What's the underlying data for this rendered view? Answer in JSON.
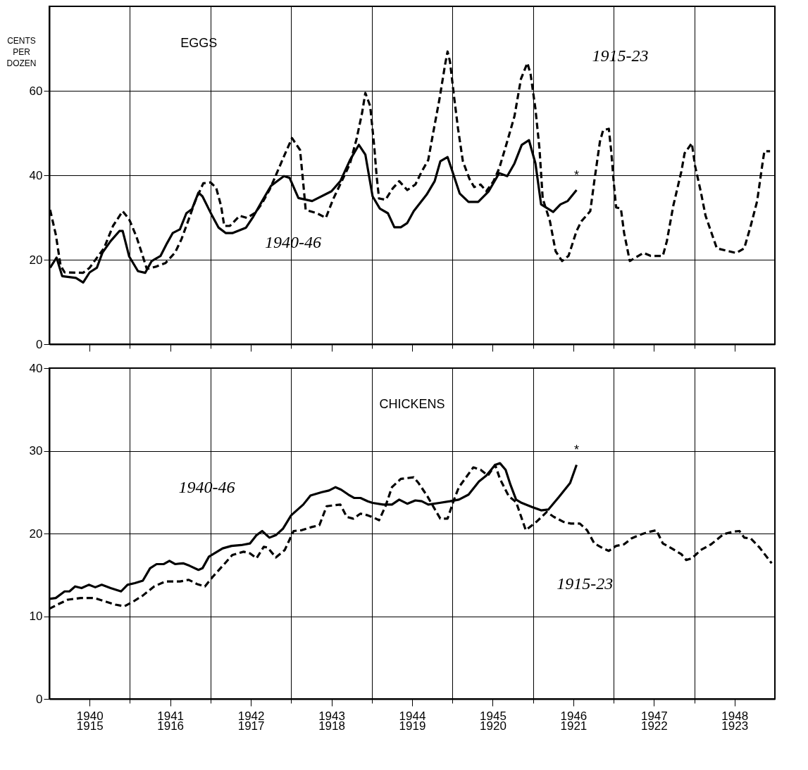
{
  "chart_data": [
    {
      "type": "line",
      "title": "EGGS",
      "ylabel": "CENTS PER DOZEN",
      "xlim": [
        1940,
        1949
      ],
      "ylim": [
        0,
        80
      ],
      "yticks": [
        0,
        20,
        40,
        60
      ],
      "grid": true,
      "tick_labels": "y",
      "xticks": [
        {
          "value": 1941,
          "label": null
        },
        {
          "value": 1942,
          "label": null
        },
        {
          "value": 1943,
          "label": null
        },
        {
          "value": 1944,
          "label": null
        },
        {
          "value": 1945,
          "label": null
        },
        {
          "value": 1946,
          "label": null
        },
        {
          "value": 1947,
          "label": null
        },
        {
          "value": 1948,
          "label": null
        },
        {
          "value": 1940.5,
          "label": null
        },
        {
          "value": 1941.5,
          "label": null
        },
        {
          "value": 1942.5,
          "label": null
        },
        {
          "value": 1943.5,
          "label": null
        },
        {
          "value": 1944.5,
          "label": null
        },
        {
          "value": 1945.5,
          "label": null
        },
        {
          "value": 1946.5,
          "label": null
        },
        {
          "value": 1947.5,
          "label": null
        },
        {
          "value": 1948.5,
          "label": null
        }
      ],
      "series": [
        {
          "color": "#000000",
          "line_style": "solid",
          "x": [
            1940.01,
            1940.09,
            1940.16,
            1940.33,
            1940.42,
            1940.5,
            1940.59,
            1940.66,
            1940.76,
            1940.87,
            1940.91,
            1940.99,
            1941.1,
            1941.19,
            1941.27,
            1941.38,
            1941.46,
            1941.53,
            1941.62,
            1941.7,
            1941.77,
            1941.85,
            1941.9,
            1942.02,
            1942.1,
            1942.19,
            1942.27,
            1942.44,
            1942.53,
            1942.64,
            1942.75,
            1942.91,
            1942.98,
            1943.09,
            1943.26,
            1943.5,
            1943.61,
            1943.73,
            1943.84,
            1943.92,
            1944.01,
            1944.1,
            1944.2,
            1944.28,
            1944.36,
            1944.44,
            1944.52,
            1944.68,
            1944.78,
            1944.85,
            1944.94,
            1945.0,
            1945.09,
            1945.2,
            1945.32,
            1945.45,
            1945.58,
            1945.68,
            1945.77,
            1945.86,
            1945.95,
            1946.03,
            1946.1,
            1946.25,
            1946.34,
            1946.43,
            1946.54
          ],
          "values": [
            18.1,
            20.5,
            16.1,
            15.7,
            14.6,
            17.0,
            18.1,
            21.7,
            24.4,
            26.8,
            26.8,
            20.8,
            17.3,
            16.9,
            19.7,
            20.9,
            23.9,
            26.3,
            27.2,
            31.0,
            32.0,
            35.9,
            35.0,
            30.4,
            27.6,
            26.3,
            26.3,
            27.6,
            30.2,
            33.9,
            37.5,
            39.8,
            39.4,
            34.6,
            33.9,
            36.2,
            38.6,
            43.6,
            47.2,
            44.9,
            35.0,
            32.1,
            31.0,
            27.7,
            27.7,
            28.7,
            31.5,
            35.4,
            38.6,
            43.3,
            44.3,
            40.9,
            35.7,
            33.7,
            33.7,
            36.2,
            40.5,
            39.8,
            42.8,
            47.2,
            48.3,
            42.8,
            33.1,
            31.3,
            33.1,
            33.9,
            36.5
          ]
        },
        {
          "color": "#000000",
          "line_style": "dashed",
          "x": [
            1940.01,
            1940.08,
            1940.14,
            1940.19,
            1940.42,
            1940.5,
            1940.68,
            1940.79,
            1940.91,
            1940.99,
            1941.08,
            1941.16,
            1941.21,
            1941.33,
            1941.44,
            1941.56,
            1941.64,
            1941.73,
            1941.81,
            1941.91,
            1942.0,
            1942.07,
            1942.13,
            1942.17,
            1942.24,
            1942.36,
            1942.45,
            1942.56,
            1942.64,
            1942.73,
            1942.79,
            1942.92,
            1943.01,
            1943.11,
            1943.15,
            1943.18,
            1943.32,
            1943.43,
            1943.52,
            1943.64,
            1943.73,
            1943.81,
            1943.88,
            1943.92,
            1943.98,
            1944.03,
            1944.06,
            1944.09,
            1944.17,
            1944.26,
            1944.34,
            1944.44,
            1944.54,
            1944.62,
            1944.7,
            1944.76,
            1944.84,
            1944.91,
            1944.94,
            1944.97,
            1945.02,
            1945.07,
            1945.13,
            1945.21,
            1945.27,
            1945.35,
            1945.42,
            1945.51,
            1945.58,
            1945.68,
            1945.77,
            1945.85,
            1945.93,
            1945.97,
            1946.03,
            1946.08,
            1946.12,
            1946.21,
            1946.28,
            1946.36,
            1946.44,
            1946.54,
            1946.6,
            1946.71,
            1946.76,
            1946.83,
            1946.87,
            1946.94,
            1946.97,
            1947.0,
            1947.03,
            1947.09,
            1947.13,
            1947.2,
            1947.37,
            1947.46,
            1947.61,
            1947.66,
            1947.74,
            1947.84,
            1947.88,
            1947.97,
            1948.01,
            1948.08,
            1948.14,
            1948.28,
            1948.43,
            1948.52,
            1948.62,
            1948.7,
            1948.78,
            1948.85,
            1948.87,
            1948.94
          ],
          "values": [
            31.8,
            26.0,
            18.6,
            17.0,
            16.9,
            18.1,
            22.8,
            28.0,
            31.5,
            29.6,
            25.5,
            20.8,
            17.8,
            18.4,
            19.2,
            21.7,
            24.9,
            29.6,
            33.9,
            38.1,
            38.3,
            37.0,
            32.8,
            28.0,
            28.0,
            30.4,
            29.9,
            31.2,
            33.4,
            36.5,
            39.1,
            44.9,
            48.8,
            46.0,
            38.1,
            31.8,
            31.0,
            29.9,
            34.3,
            39.1,
            42.8,
            48.5,
            54.8,
            59.5,
            56.4,
            46.9,
            39.8,
            34.5,
            34.2,
            36.9,
            38.6,
            36.5,
            37.8,
            40.9,
            43.6,
            49.9,
            58.1,
            66.3,
            69.3,
            66.9,
            58.7,
            51.0,
            43.3,
            39.2,
            37.2,
            37.8,
            36.2,
            38.6,
            41.6,
            48.0,
            54.0,
            62.8,
            66.6,
            63.9,
            55.7,
            46.3,
            34.5,
            29.1,
            22.0,
            19.7,
            20.9,
            26.8,
            29.1,
            31.5,
            38.6,
            48.0,
            50.7,
            51.0,
            45.7,
            38.6,
            32.4,
            32.1,
            26.3,
            19.7,
            21.6,
            20.9,
            20.9,
            24.4,
            32.8,
            40.9,
            45.2,
            47.6,
            42.2,
            36.2,
            30.4,
            22.7,
            22.0,
            21.6,
            22.7,
            28.0,
            33.9,
            43.3,
            45.7,
            45.7
          ]
        }
      ],
      "annotations": [
        "1940-46",
        "1915-23",
        {
          "text": "*",
          "x": 1946.54,
          "y": 36.5
        }
      ]
    },
    {
      "type": "line",
      "title": "CHICKENS",
      "xlim": [
        1940,
        1949
      ],
      "ylim": [
        0,
        40
      ],
      "yticks": [
        0,
        10,
        20,
        30,
        40
      ],
      "grid": true,
      "xticks": [
        {
          "value": 1941,
          "label": null
        },
        {
          "value": 1942,
          "label": null
        },
        {
          "value": 1943,
          "label": null
        },
        {
          "value": 1944,
          "label": null
        },
        {
          "value": 1945,
          "label": null
        },
        {
          "value": 1946,
          "label": null
        },
        {
          "value": 1947,
          "label": null
        },
        {
          "value": 1948,
          "label": null
        },
        {
          "value": 1940.5,
          "label": "1940"
        },
        {
          "value": 1941.5,
          "label": "1941"
        },
        {
          "value": 1942.5,
          "label": "1942"
        },
        {
          "value": 1943.5,
          "label": "1943"
        },
        {
          "value": 1944.5,
          "label": "1944"
        },
        {
          "value": 1945.5,
          "label": "1945"
        },
        {
          "value": 1946.5,
          "label": "1946"
        },
        {
          "value": 1947.5,
          "label": "1947"
        },
        {
          "value": 1948.5,
          "label": "1948"
        }
      ],
      "x2lim": [
        1915,
        1924
      ],
      "x2ticks": [
        {
          "value": 1915.5,
          "label": "1915"
        },
        {
          "value": 1916.5,
          "label": "1916"
        },
        {
          "value": 1917.5,
          "label": "1917"
        },
        {
          "value": 1918.5,
          "label": "1918"
        },
        {
          "value": 1919.5,
          "label": "1919"
        },
        {
          "value": 1920.5,
          "label": "1920"
        },
        {
          "value": 1921.5,
          "label": "1921"
        },
        {
          "value": 1922.5,
          "label": "1922"
        },
        {
          "value": 1923.5,
          "label": "1923"
        }
      ],
      "series": [
        {
          "color": "#000000",
          "line_style": "solid",
          "x": [
            1940.0,
            1940.08,
            1940.19,
            1940.25,
            1940.32,
            1940.4,
            1940.49,
            1940.57,
            1940.65,
            1940.76,
            1940.89,
            1940.97,
            1941.06,
            1941.16,
            1941.25,
            1941.33,
            1941.42,
            1941.49,
            1941.56,
            1941.66,
            1941.74,
            1941.85,
            1941.9,
            1941.98,
            1942.15,
            1942.26,
            1942.38,
            1942.49,
            1942.57,
            1942.64,
            1942.73,
            1942.81,
            1942.9,
            1943.0,
            1943.15,
            1943.24,
            1943.38,
            1943.47,
            1943.55,
            1943.62,
            1943.71,
            1943.78,
            1943.86,
            1943.95,
            1944.01,
            1944.14,
            1944.25,
            1944.34,
            1944.44,
            1944.54,
            1944.62,
            1944.7,
            1944.84,
            1944.97,
            1945.08,
            1945.2,
            1945.33,
            1945.42,
            1945.53,
            1945.59,
            1945.66,
            1945.72,
            1945.79,
            1945.86,
            1945.99,
            1946.1,
            1946.19,
            1946.32,
            1946.46,
            1946.54
          ],
          "values": [
            12.1,
            12.2,
            13.0,
            13.0,
            13.6,
            13.4,
            13.8,
            13.5,
            13.8,
            13.4,
            13.0,
            13.8,
            14.0,
            14.3,
            15.8,
            16.3,
            16.3,
            16.7,
            16.3,
            16.4,
            16.1,
            15.6,
            15.8,
            17.2,
            18.2,
            18.5,
            18.6,
            18.8,
            19.8,
            20.3,
            19.5,
            19.8,
            20.6,
            22.2,
            23.5,
            24.6,
            25.0,
            25.2,
            25.6,
            25.3,
            24.7,
            24.3,
            24.3,
            23.9,
            23.7,
            23.5,
            23.5,
            24.1,
            23.6,
            24.0,
            23.9,
            23.5,
            23.7,
            23.9,
            24.1,
            24.7,
            26.3,
            27.0,
            28.3,
            28.5,
            27.7,
            25.9,
            24.1,
            23.7,
            23.2,
            22.8,
            22.9,
            24.4,
            26.1,
            28.3
          ]
        },
        {
          "color": "#000000",
          "line_style": "dashed",
          "x": [
            1940.0,
            1940.1,
            1940.23,
            1940.39,
            1940.56,
            1940.69,
            1940.82,
            1940.93,
            1941.03,
            1941.16,
            1941.3,
            1941.44,
            1941.62,
            1941.73,
            1941.83,
            1941.93,
            1942.03,
            1942.17,
            1942.27,
            1942.41,
            1942.49,
            1942.57,
            1942.66,
            1942.71,
            1942.81,
            1942.92,
            1943.03,
            1943.13,
            1943.26,
            1943.35,
            1943.44,
            1943.52,
            1943.61,
            1943.69,
            1943.77,
            1943.86,
            1943.95,
            1944.03,
            1944.09,
            1944.17,
            1944.25,
            1944.36,
            1944.52,
            1944.58,
            1944.69,
            1944.79,
            1944.85,
            1944.94,
            1945.02,
            1945.08,
            1945.26,
            1945.35,
            1945.44,
            1945.53,
            1945.59,
            1945.7,
            1945.79,
            1945.91,
            1946.04,
            1946.17,
            1946.26,
            1946.38,
            1946.47,
            1946.58,
            1946.67,
            1946.76,
            1946.87,
            1946.94,
            1947.03,
            1947.13,
            1947.22,
            1947.34,
            1947.44,
            1947.53,
            1947.61,
            1947.72,
            1947.84,
            1947.9,
            1947.97,
            1948.08,
            1948.21,
            1948.36,
            1948.47,
            1948.56,
            1948.62,
            1948.7,
            1948.81,
            1948.96
          ],
          "values": [
            10.9,
            11.4,
            12.0,
            12.2,
            12.2,
            11.8,
            11.4,
            11.2,
            11.7,
            12.5,
            13.6,
            14.2,
            14.2,
            14.4,
            13.9,
            13.6,
            14.8,
            16.3,
            17.4,
            17.8,
            17.6,
            17.0,
            18.4,
            18.3,
            17.1,
            18.0,
            20.3,
            20.4,
            20.8,
            21.0,
            23.3,
            23.4,
            23.5,
            22.0,
            21.8,
            22.4,
            22.2,
            21.9,
            21.6,
            23.3,
            25.6,
            26.6,
            26.8,
            26.1,
            24.5,
            22.8,
            21.8,
            21.8,
            24.1,
            25.6,
            28.0,
            27.7,
            27.0,
            28.3,
            26.6,
            24.5,
            23.8,
            20.4,
            21.4,
            22.6,
            22.0,
            21.4,
            21.2,
            21.2,
            20.4,
            18.8,
            18.2,
            17.9,
            18.5,
            18.7,
            19.4,
            19.9,
            20.2,
            20.4,
            18.8,
            18.2,
            17.5,
            16.8,
            17.0,
            18.0,
            18.7,
            19.9,
            20.2,
            20.3,
            19.5,
            19.4,
            18.3,
            16.4
          ]
        }
      ],
      "annotations": [
        "1940-46",
        "1915-23",
        {
          "text": "*",
          "x": 1946.54,
          "y": 28.3
        }
      ]
    }
  ]
}
